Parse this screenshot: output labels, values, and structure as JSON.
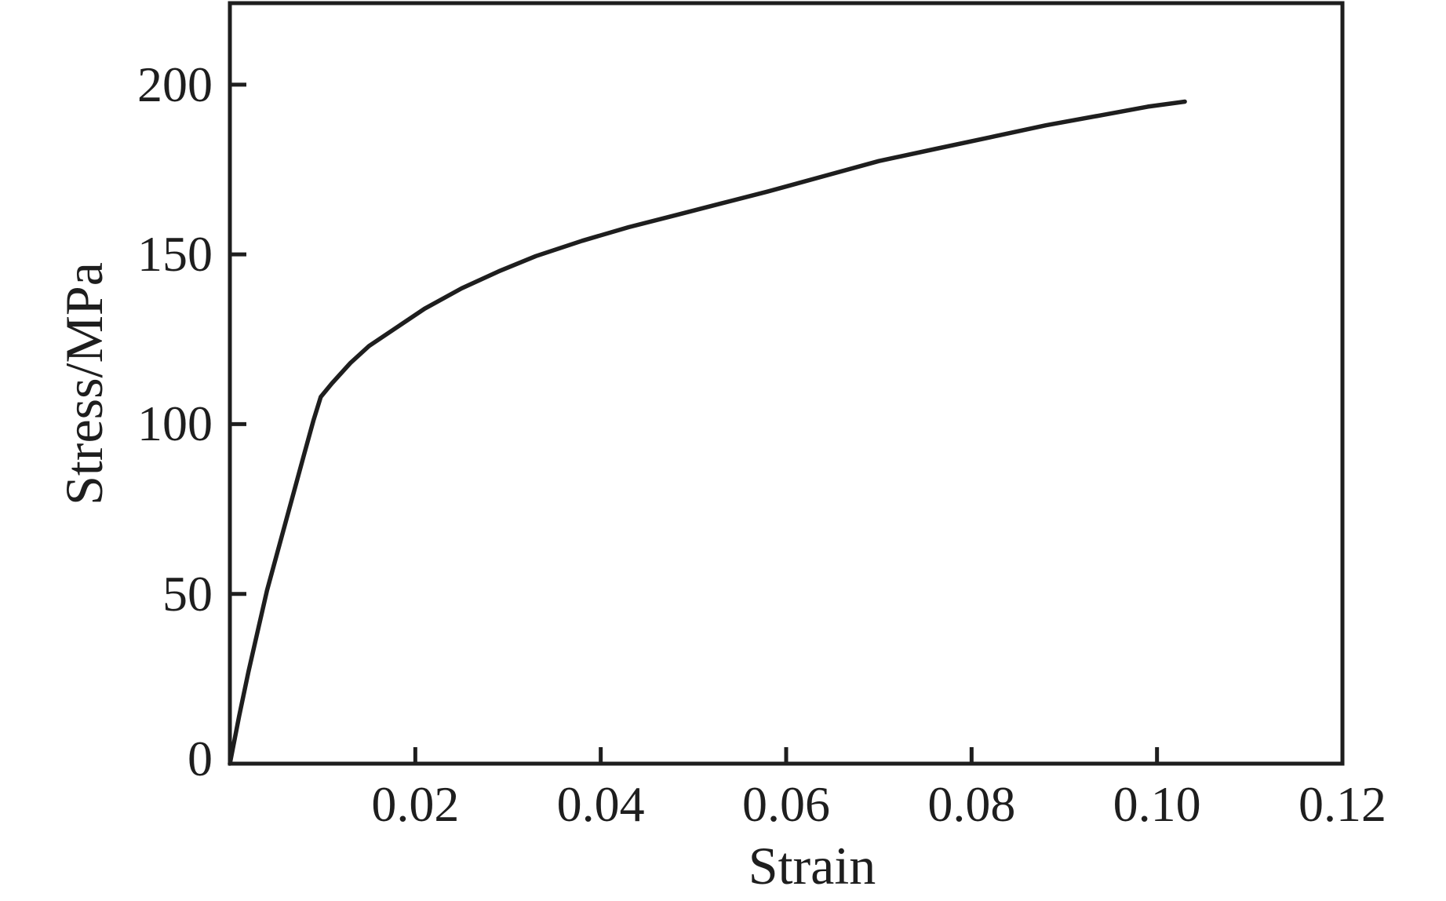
{
  "chart_data": {
    "type": "line",
    "title": "",
    "xlabel": "Strain",
    "ylabel": "Stress/MPa",
    "xlim": [
      0,
      0.12
    ],
    "ylim": [
      0,
      224
    ],
    "grid": false,
    "legend": "none",
    "frame": "closed box with inward ticks",
    "x_ticks": [
      {
        "value": 0.02,
        "label": "0.02"
      },
      {
        "value": 0.04,
        "label": "0.04"
      },
      {
        "value": 0.06,
        "label": "0.06"
      },
      {
        "value": 0.08,
        "label": "0.08"
      },
      {
        "value": 0.1,
        "label": "0.10"
      },
      {
        "value": 0.12,
        "label": "0.12"
      }
    ],
    "y_ticks": [
      {
        "value": 0,
        "label": "0"
      },
      {
        "value": 50,
        "label": "50"
      },
      {
        "value": 100,
        "label": "100"
      },
      {
        "value": 150,
        "label": "150"
      },
      {
        "value": 200,
        "label": "200"
      }
    ],
    "series": [
      {
        "name": "stress-strain-curve",
        "color": "#1e1e1e",
        "points": [
          [
            0.0,
            0
          ],
          [
            0.001,
            14
          ],
          [
            0.002,
            27
          ],
          [
            0.003,
            39
          ],
          [
            0.004,
            51
          ],
          [
            0.005,
            61
          ],
          [
            0.006,
            71
          ],
          [
            0.007,
            81
          ],
          [
            0.008,
            91
          ],
          [
            0.009,
            101
          ],
          [
            0.0098,
            108
          ],
          [
            0.011,
            112
          ],
          [
            0.013,
            118
          ],
          [
            0.015,
            123
          ],
          [
            0.018,
            128.5
          ],
          [
            0.021,
            134
          ],
          [
            0.025,
            140
          ],
          [
            0.029,
            145
          ],
          [
            0.033,
            149.5
          ],
          [
            0.038,
            154
          ],
          [
            0.043,
            158
          ],
          [
            0.048,
            161.5
          ],
          [
            0.053,
            165
          ],
          [
            0.058,
            168.5
          ],
          [
            0.064,
            173
          ],
          [
            0.07,
            177.5
          ],
          [
            0.076,
            181
          ],
          [
            0.082,
            184.5
          ],
          [
            0.088,
            188
          ],
          [
            0.094,
            191
          ],
          [
            0.099,
            193.5
          ],
          [
            0.103,
            195
          ]
        ]
      }
    ]
  },
  "colors": {
    "ink": "#1e1e1e",
    "background": "#ffffff"
  }
}
